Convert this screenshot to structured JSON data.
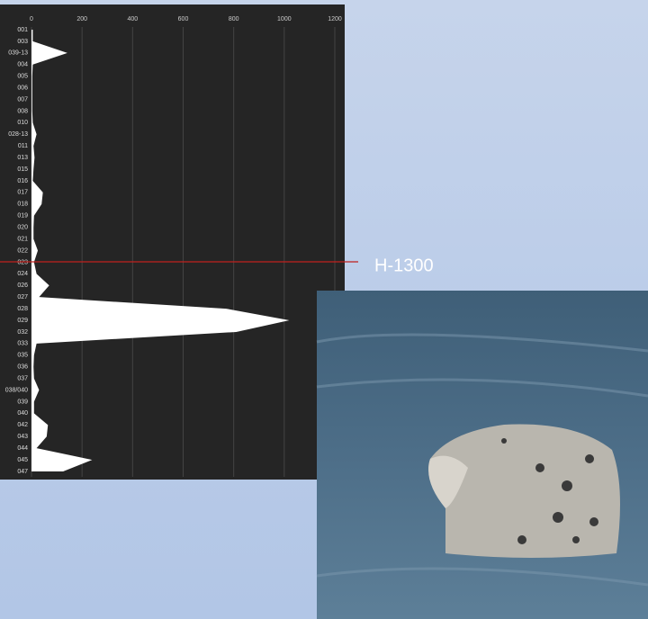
{
  "chart_data": {
    "type": "area",
    "orientation": "horizontal",
    "categories": [
      "001",
      "003",
      "039-13",
      "004",
      "005",
      "006",
      "007",
      "008",
      "010",
      "028-13",
      "011",
      "013",
      "015",
      "016",
      "017",
      "018",
      "019",
      "020",
      "021",
      "022",
      "023",
      "024",
      "026",
      "027",
      "028",
      "029",
      "032",
      "033",
      "035",
      "036",
      "037",
      "038/040",
      "039",
      "040",
      "042",
      "043",
      "044",
      "045",
      "047"
    ],
    "values": [
      5,
      5,
      142,
      5,
      3,
      3,
      3,
      3,
      5,
      20,
      8,
      12,
      8,
      5,
      45,
      40,
      10,
      8,
      8,
      25,
      10,
      20,
      70,
      30,
      770,
      1020,
      810,
      20,
      10,
      8,
      10,
      30,
      10,
      10,
      65,
      60,
      20,
      240,
      125
    ],
    "color": "#ffffff",
    "xlim": [
      0,
      1200
    ],
    "xticks": [
      0,
      200,
      400,
      600,
      800,
      1000,
      1200
    ],
    "grid": true,
    "annotation": "H-1300"
  }
}
